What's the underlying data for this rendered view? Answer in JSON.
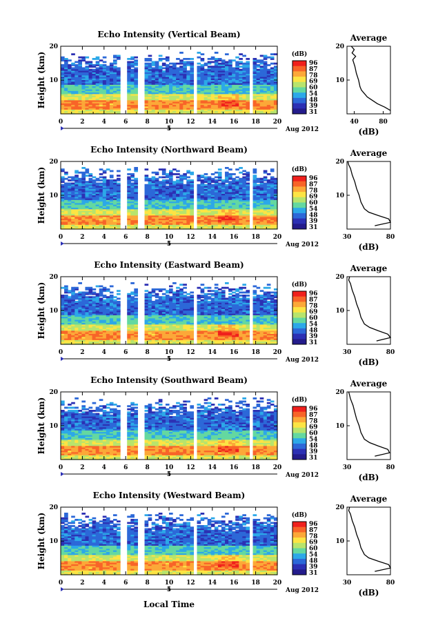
{
  "figure": {
    "xlabel": "Local Time",
    "ylabel": "Height (km)",
    "date_label": "Aug 2012",
    "date_tick": "5",
    "colorbar_unit": "(dB)",
    "colorbar_ticks": [
      "96",
      "87",
      "78",
      "69",
      "60",
      "54",
      "48",
      "39",
      "31"
    ],
    "colorbar_colors": [
      "#f0201c",
      "#f86428",
      "#fca838",
      "#fce444",
      "#b8e46c",
      "#64d8a0",
      "#2ca8e8",
      "#2c68d8",
      "#2c30b4",
      "#241c8c"
    ],
    "x_ticks": [
      "0",
      "2",
      "4",
      "6",
      "8",
      "10",
      "12",
      "14",
      "16",
      "18",
      "20"
    ],
    "y_ticks": [
      "10",
      "20"
    ],
    "avg_title": "Average",
    "avg_xlabel": "(dB)",
    "avg_yticks": [
      "10",
      "20"
    ]
  },
  "chart_data": [
    {
      "type": "heatmap",
      "title": "Echo Intensity (Vertical Beam)",
      "xlabel": "Local Time",
      "ylabel": "Height (km)",
      "xlim": [
        0,
        20
      ],
      "ylim": [
        0,
        20
      ],
      "data_gaps_hours": [
        [
          5.5,
          6.0
        ],
        [
          7.2,
          7.6
        ],
        [
          12.2,
          12.6
        ],
        [
          17.5,
          17.9
        ]
      ],
      "average_profile": {
        "xlabel": "(dB)",
        "xlim": [
          30,
          90
        ],
        "xticks": [
          "40",
          "80"
        ],
        "height_km": [
          1,
          2,
          3,
          4,
          5,
          6,
          7,
          8,
          10,
          12,
          14,
          16,
          17,
          18,
          19,
          20
        ],
        "value_db": [
          90,
          82,
          72,
          65,
          58,
          54,
          50,
          48,
          46,
          43,
          41,
          38,
          42,
          37,
          40,
          36
        ]
      }
    },
    {
      "type": "heatmap",
      "title": "Echo Intensity (Northward Beam)",
      "xlabel": "Local Time",
      "ylabel": "Height (km)",
      "xlim": [
        0,
        20
      ],
      "ylim": [
        0,
        20
      ],
      "data_gaps_hours": [
        [
          5.5,
          6.0
        ],
        [
          7.2,
          7.6
        ],
        [
          12.2,
          12.6
        ],
        [
          17.5,
          17.9
        ]
      ],
      "average_profile": {
        "xlabel": "(dB)",
        "xlim": [
          30,
          80
        ],
        "xticks": [
          "30",
          "80"
        ],
        "height_km": [
          1,
          2,
          3,
          4,
          5,
          6,
          8,
          10,
          12,
          14,
          16,
          18,
          19,
          20
        ],
        "value_db": [
          62,
          80,
          78,
          66,
          55,
          50,
          46,
          44,
          41,
          39,
          36,
          34,
          32,
          31
        ]
      }
    },
    {
      "type": "heatmap",
      "title": "Echo Intensity (Eastward Beam)",
      "xlabel": "Local Time",
      "ylabel": "Height (km)",
      "xlim": [
        0,
        20
      ],
      "ylim": [
        0,
        20
      ],
      "data_gaps_hours": [
        [
          5.5,
          6.0
        ],
        [
          7.2,
          7.6
        ],
        [
          12.2,
          12.6
        ],
        [
          17.5,
          17.9
        ]
      ],
      "average_profile": {
        "xlabel": "(dB)",
        "xlim": [
          30,
          80
        ],
        "xticks": [
          "30",
          "80"
        ],
        "height_km": [
          1,
          2,
          3,
          4,
          5,
          6,
          8,
          10,
          12,
          14,
          16,
          18,
          19,
          20
        ],
        "value_db": [
          64,
          80,
          77,
          66,
          56,
          50,
          46,
          44,
          41,
          39,
          36,
          34,
          32,
          33
        ]
      }
    },
    {
      "type": "heatmap",
      "title": "Echo Intensity (Southward Beam)",
      "xlabel": "Local Time",
      "ylabel": "Height (km)",
      "xlim": [
        0,
        20
      ],
      "ylim": [
        0,
        20
      ],
      "data_gaps_hours": [
        [
          5.5,
          6.0
        ],
        [
          7.2,
          7.6
        ],
        [
          12.2,
          12.6
        ],
        [
          17.5,
          17.9
        ]
      ],
      "average_profile": {
        "xlabel": "(dB)",
        "xlim": [
          30,
          80
        ],
        "xticks": [
          "30",
          "80"
        ],
        "height_km": [
          1,
          2,
          3,
          4,
          5,
          6,
          8,
          10,
          12,
          14,
          16,
          18,
          19,
          20
        ],
        "value_db": [
          62,
          79,
          77,
          66,
          56,
          50,
          46,
          44,
          41,
          39,
          37,
          34,
          33,
          32
        ]
      }
    },
    {
      "type": "heatmap",
      "title": "Echo Intensity (Westward Beam)",
      "xlabel": "Local Time",
      "ylabel": "Height (km)",
      "xlim": [
        0,
        20
      ],
      "ylim": [
        0,
        20
      ],
      "data_gaps_hours": [
        [
          5.5,
          6.0
        ],
        [
          7.2,
          7.6
        ],
        [
          12.2,
          12.6
        ],
        [
          17.5,
          17.9
        ]
      ],
      "average_profile": {
        "xlabel": "(dB)",
        "xlim": [
          30,
          80
        ],
        "xticks": [
          "30",
          "80"
        ],
        "height_km": [
          1,
          2,
          3,
          4,
          5,
          6,
          8,
          10,
          12,
          14,
          16,
          18,
          19,
          20
        ],
        "value_db": [
          62,
          80,
          78,
          66,
          55,
          50,
          46,
          44,
          41,
          39,
          36,
          34,
          32,
          33
        ]
      }
    }
  ]
}
